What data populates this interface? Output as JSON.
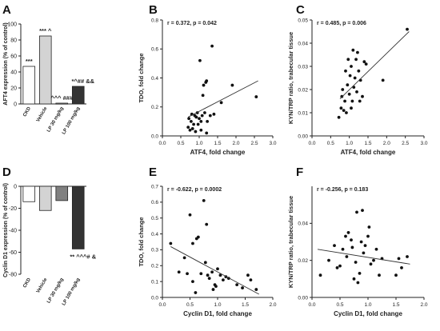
{
  "chart_data": [
    {
      "panel": "A",
      "type": "bar",
      "ylabel": "AFT4 expression (% of control)",
      "ylim": [
        0,
        100
      ],
      "yticks": [
        0,
        20,
        40,
        60,
        80,
        100
      ],
      "categories": [
        "CKD",
        "Vehicle",
        "LP 30 mg/kg",
        "LP 100 mg/kg"
      ],
      "values": [
        47,
        85,
        1,
        22
      ],
      "annotations": [
        "***",
        "*** ^",
        "^^^ ###",
        "*^## &&"
      ],
      "fill_colors": [
        "#ffffff",
        "#d3d3d3",
        "#808080",
        "#333333"
      ]
    },
    {
      "panel": "B",
      "type": "scatter",
      "annotation": "r = 0.372, p = 0.042",
      "xlabel": "ATF4, fold change",
      "ylabel": "TDO, fold change",
      "xlim": [
        0.0,
        3.0
      ],
      "ylim": [
        0.0,
        0.8
      ],
      "xticks": [
        "0.0",
        "0.5",
        "1.0",
        "1.5",
        "2.0",
        "2.5",
        "3.0"
      ],
      "yticks": [
        "0.0",
        "0.2",
        "0.4",
        "0.6",
        "0.8"
      ],
      "points": [
        [
          0.7,
          0.06
        ],
        [
          0.72,
          0.12
        ],
        [
          0.75,
          0.04
        ],
        [
          0.78,
          0.1
        ],
        [
          0.8,
          0.15
        ],
        [
          0.82,
          0.05
        ],
        [
          0.85,
          0.08
        ],
        [
          0.88,
          0.14
        ],
        [
          0.9,
          0.03
        ],
        [
          0.92,
          0.13
        ],
        [
          0.95,
          0.16
        ],
        [
          0.97,
          0.08
        ],
        [
          1.0,
          0.12
        ],
        [
          1.02,
          0.52
        ],
        [
          1.05,
          0.1
        ],
        [
          1.05,
          0.04
        ],
        [
          1.08,
          0.14
        ],
        [
          1.1,
          0.28
        ],
        [
          1.12,
          0.35
        ],
        [
          1.15,
          0.16
        ],
        [
          1.18,
          0.37
        ],
        [
          1.2,
          0.38
        ],
        [
          1.2,
          0.02
        ],
        [
          1.22,
          0.1
        ],
        [
          1.3,
          0.14
        ],
        [
          1.35,
          0.62
        ],
        [
          1.4,
          0.15
        ],
        [
          1.6,
          0.23
        ],
        [
          1.9,
          0.35
        ],
        [
          2.55,
          0.27
        ]
      ],
      "fit": [
        [
          0.7,
          0.13
        ],
        [
          2.6,
          0.38
        ]
      ]
    },
    {
      "panel": "C",
      "type": "scatter",
      "annotation": "r = 0.485, p = 0.006",
      "xlabel": "ATF4, fold change",
      "ylabel": "KYN/TRP ratio, trabecular tissue",
      "xlim": [
        0.0,
        3.0
      ],
      "ylim": [
        0.0,
        0.05
      ],
      "xticks": [
        "0.0",
        "0.5",
        "1.0",
        "1.5",
        "2.0",
        "2.5",
        "3.0"
      ],
      "yticks": [
        "0.00",
        "0.01",
        "0.02",
        "0.03",
        "0.04",
        "0.05"
      ],
      "points": [
        [
          0.72,
          0.008
        ],
        [
          0.78,
          0.012
        ],
        [
          0.8,
          0.017
        ],
        [
          0.82,
          0.02
        ],
        [
          0.85,
          0.011
        ],
        [
          0.88,
          0.015
        ],
        [
          0.9,
          0.028
        ],
        [
          0.92,
          0.01
        ],
        [
          0.95,
          0.022
        ],
        [
          0.97,
          0.033
        ],
        [
          1.0,
          0.018
        ],
        [
          1.02,
          0.026
        ],
        [
          1.05,
          0.012
        ],
        [
          1.05,
          0.03
        ],
        [
          1.08,
          0.015
        ],
        [
          1.1,
          0.037
        ],
        [
          1.12,
          0.021
        ],
        [
          1.15,
          0.025
        ],
        [
          1.18,
          0.033
        ],
        [
          1.2,
          0.019
        ],
        [
          1.22,
          0.036
        ],
        [
          1.25,
          0.028
        ],
        [
          1.28,
          0.015
        ],
        [
          1.3,
          0.024
        ],
        [
          1.35,
          0.017
        ],
        [
          1.4,
          0.032
        ],
        [
          1.45,
          0.031
        ],
        [
          1.9,
          0.024
        ],
        [
          2.55,
          0.046
        ]
      ],
      "fit": [
        [
          0.75,
          0.016
        ],
        [
          2.6,
          0.045
        ]
      ]
    },
    {
      "panel": "D",
      "type": "bar",
      "ylabel": "Cyclin D1 expression (% of control)",
      "ylim": [
        -80,
        0
      ],
      "yticks": [
        0,
        -20,
        -40,
        -60,
        -80
      ],
      "categories": [
        "CKD",
        "Vehicle",
        "LP 30 mg/kg",
        "LP 100 mg/kg"
      ],
      "values": [
        -14,
        -22,
        -13,
        -57
      ],
      "annotations": [
        "",
        "",
        "",
        "** ^^^# &"
      ],
      "fill_colors": [
        "#ffffff",
        "#d3d3d3",
        "#808080",
        "#333333"
      ]
    },
    {
      "panel": "E",
      "type": "scatter",
      "annotation": "r = -0.622, p = 0.0002",
      "xlabel": "Cyclin D1, fold change",
      "ylabel": "TDO, fold change",
      "xlim": [
        0.0,
        2.0
      ],
      "ylim": [
        0.0,
        0.7
      ],
      "xticks": [
        "0.0",
        "0.5",
        "1.0",
        "1.5",
        "2.0"
      ],
      "yticks": [
        "0.0",
        "0.1",
        "0.2",
        "0.3",
        "0.4",
        "0.5",
        "0.6",
        "0.7"
      ],
      "points": [
        [
          0.15,
          0.34
        ],
        [
          0.3,
          0.16
        ],
        [
          0.4,
          0.25
        ],
        [
          0.45,
          0.15
        ],
        [
          0.5,
          0.52
        ],
        [
          0.55,
          0.34
        ],
        [
          0.55,
          0.1
        ],
        [
          0.6,
          0.03
        ],
        [
          0.62,
          0.37
        ],
        [
          0.65,
          0.38
        ],
        [
          0.7,
          0.15
        ],
        [
          0.75,
          0.61
        ],
        [
          0.78,
          0.22
        ],
        [
          0.8,
          0.46
        ],
        [
          0.82,
          0.14
        ],
        [
          0.85,
          0.12
        ],
        [
          0.9,
          0.16
        ],
        [
          0.92,
          0.05
        ],
        [
          0.95,
          0.08
        ],
        [
          0.97,
          0.07
        ],
        [
          1.0,
          0.18
        ],
        [
          1.05,
          0.14
        ],
        [
          1.1,
          0.11
        ],
        [
          1.15,
          0.13
        ],
        [
          1.2,
          0.12
        ],
        [
          1.35,
          0.08
        ],
        [
          1.45,
          0.06
        ],
        [
          1.55,
          0.14
        ],
        [
          1.6,
          0.11
        ],
        [
          1.7,
          0.05
        ]
      ],
      "fit": [
        [
          0.15,
          0.32
        ],
        [
          1.75,
          0.02
        ]
      ]
    },
    {
      "panel": "F",
      "type": "scatter",
      "annotation": "r = -0.256, p = 0.183",
      "xlabel": "Cyclin D1, fold change",
      "ylabel": "KYN/TRP ratio, trabecular tissue",
      "xlim": [
        0.0,
        2.0
      ],
      "ylim": [
        0.0,
        0.06
      ],
      "xticks": [
        "0.0",
        "0.5",
        "1.0",
        "1.5",
        "2.0"
      ],
      "yticks": [
        "0.00",
        "0.02",
        "0.04"
      ],
      "points": [
        [
          0.15,
          0.012
        ],
        [
          0.3,
          0.02
        ],
        [
          0.4,
          0.028
        ],
        [
          0.45,
          0.016
        ],
        [
          0.5,
          0.017
        ],
        [
          0.55,
          0.026
        ],
        [
          0.6,
          0.033
        ],
        [
          0.62,
          0.022
        ],
        [
          0.65,
          0.035
        ],
        [
          0.7,
          0.031
        ],
        [
          0.72,
          0.027
        ],
        [
          0.75,
          0.01
        ],
        [
          0.78,
          0.019
        ],
        [
          0.8,
          0.046
        ],
        [
          0.82,
          0.008
        ],
        [
          0.85,
          0.013
        ],
        [
          0.88,
          0.03
        ],
        [
          0.9,
          0.047
        ],
        [
          0.92,
          0.024
        ],
        [
          0.95,
          0.028
        ],
        [
          1.0,
          0.033
        ],
        [
          1.02,
          0.038
        ],
        [
          1.05,
          0.018
        ],
        [
          1.1,
          0.02
        ],
        [
          1.15,
          0.026
        ],
        [
          1.2,
          0.012
        ],
        [
          1.25,
          0.021
        ],
        [
          1.5,
          0.012
        ],
        [
          1.55,
          0.021
        ],
        [
          1.6,
          0.016
        ],
        [
          1.7,
          0.022
        ]
      ],
      "fit": [
        [
          0.1,
          0.026
        ],
        [
          1.75,
          0.018
        ]
      ]
    }
  ]
}
